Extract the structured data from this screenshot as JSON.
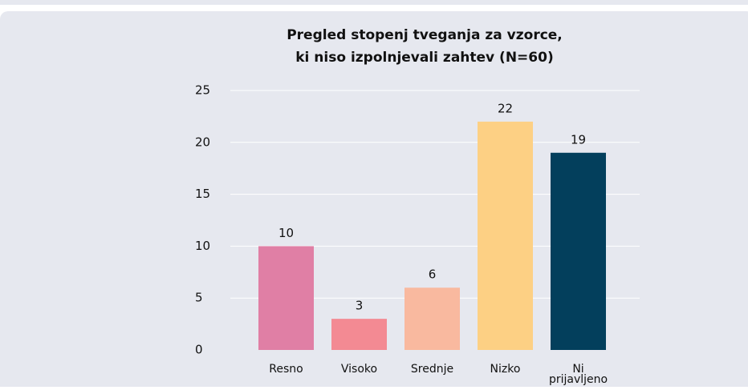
{
  "chart_data": {
    "type": "bar",
    "title": [
      "Pregled stopenj tveganja za vzorce,",
      "ki niso izpolnjevali zahtev (N=60)"
    ],
    "categories": [
      "Resno",
      "Visoko",
      "Srednje",
      "Nizko",
      "Ni prijavljeno"
    ],
    "values": [
      10,
      3,
      6,
      22,
      19
    ],
    "colors": [
      "#e07fa5",
      "#f38a93",
      "#f9b99f",
      "#fdd084",
      "#033f5c"
    ],
    "ylim": [
      0,
      25
    ],
    "yticks": [
      0,
      5,
      10,
      15,
      20,
      25
    ],
    "grid": true
  }
}
